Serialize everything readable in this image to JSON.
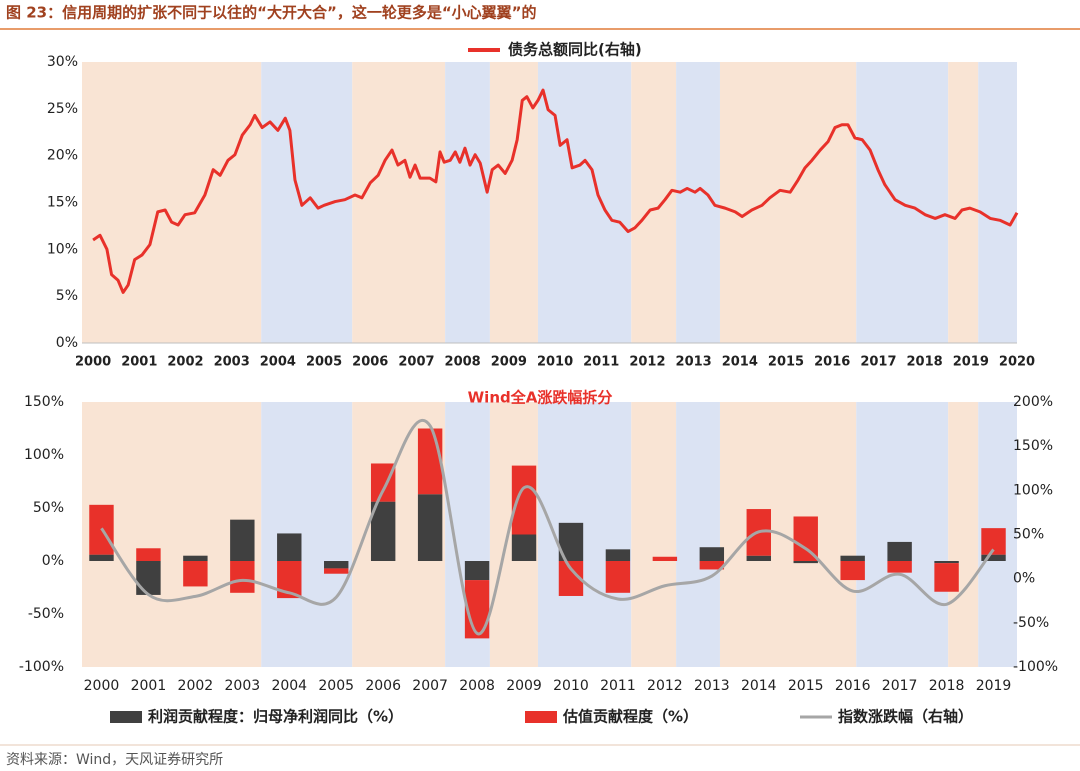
{
  "title": "图 23：信用周期的扩张不同于以往的“大开大合”，这一轮更多是“小心翼翼”的",
  "source": "资料来源：Wind，天风证券研究所",
  "chart_data": [
    {
      "type": "line",
      "legend": "top",
      "xlim": [
        1999.76,
        2020
      ],
      "xticks": [
        2000,
        2001,
        2002,
        2003,
        2004,
        2005,
        2006,
        2007,
        2008,
        2009,
        2010,
        2011,
        2012,
        2013,
        2014,
        2015,
        2016,
        2017,
        2018,
        2019,
        2020
      ],
      "ylim": [
        0,
        30
      ],
      "yticks": [
        {
          "value": 0,
          "label": "0%"
        },
        {
          "value": 5,
          "label": "5%"
        },
        {
          "value": 10,
          "label": "10%"
        },
        {
          "value": 15,
          "label": "15%"
        },
        {
          "value": 20,
          "label": "20%"
        },
        {
          "value": 25,
          "label": "25%"
        },
        {
          "value": 30,
          "label": "30%"
        }
      ],
      "shaded_periods": [
        {
          "from": 1999.76,
          "to": 2003.64,
          "color": "#f9e4d4"
        },
        {
          "from": 2003.64,
          "to": 2005.61,
          "color": "#dbe3f3"
        },
        {
          "from": 2005.61,
          "to": 2007.62,
          "color": "#f9e4d4"
        },
        {
          "from": 2007.62,
          "to": 2008.59,
          "color": "#dbe3f3"
        },
        {
          "from": 2008.59,
          "to": 2009.63,
          "color": "#f9e4d4"
        },
        {
          "from": 2009.63,
          "to": 2011.65,
          "color": "#dbe3f3"
        },
        {
          "from": 2011.65,
          "to": 2012.62,
          "color": "#f9e4d4"
        },
        {
          "from": 2012.62,
          "to": 2013.57,
          "color": "#dbe3f3"
        },
        {
          "from": 2013.57,
          "to": 2016.52,
          "color": "#f9e4d4"
        },
        {
          "from": 2016.52,
          "to": 2018.51,
          "color": "#dbe3f3"
        },
        {
          "from": 2018.51,
          "to": 2019.16,
          "color": "#f9e4d4"
        },
        {
          "from": 2019.16,
          "to": 2020,
          "color": "#dbe3f3"
        }
      ],
      "x": [
        2000,
        2000.15,
        2000.3,
        2000.4,
        2000.54,
        2000.65,
        2000.76,
        2000.9,
        2001.06,
        2001.23,
        2001.4,
        2001.56,
        2001.7,
        2001.84,
        2001.99,
        2002.2,
        2002.42,
        2002.6,
        2002.75,
        2002.92,
        2003.07,
        2003.23,
        2003.4,
        2003.5,
        2003.66,
        2003.83,
        2004,
        2004.16,
        2004.26,
        2004.37,
        2004.52,
        2004.7,
        2004.87,
        2005,
        2005.24,
        2005.45,
        2005.67,
        2005.82,
        2006,
        2006.17,
        2006.32,
        2006.47,
        2006.6,
        2006.75,
        2006.86,
        2006.97,
        2007.08,
        2007.29,
        2007.42,
        2007.51,
        2007.6,
        2007.73,
        2007.84,
        2007.94,
        2008.05,
        2008.16,
        2008.27,
        2008.38,
        2008.53,
        2008.64,
        2008.77,
        2008.92,
        2009.07,
        2009.18,
        2009.29,
        2009.39,
        2009.52,
        2009.63,
        2009.74,
        2009.85,
        2010,
        2010.11,
        2010.26,
        2010.37,
        2010.54,
        2010.65,
        2010.8,
        2010.93,
        2011.08,
        2011.23,
        2011.4,
        2011.58,
        2011.73,
        2011.88,
        2012.06,
        2012.23,
        2012.38,
        2012.53,
        2012.71,
        2012.86,
        2013.03,
        2013.14,
        2013.31,
        2013.46,
        2013.68,
        2013.9,
        2014.05,
        2014.26,
        2014.48,
        2014.65,
        2014.87,
        2015.09,
        2015.26,
        2015.41,
        2015.56,
        2015.74,
        2015.91,
        2016.06,
        2016.21,
        2016.34,
        2016.49,
        2016.65,
        2016.82,
        2016.99,
        2017.14,
        2017.36,
        2017.58,
        2017.79,
        2018.01,
        2018.23,
        2018.44,
        2018.66,
        2018.81,
        2018.98,
        2019.2,
        2019.42,
        2019.63,
        2019.85,
        2020
      ],
      "series": [
        {
          "name": "债务总额同比(右轴)",
          "color": "#e8312a",
          "values": [
            11.0,
            11.5,
            10.0,
            7.3,
            6.7,
            5.4,
            6.2,
            8.9,
            9.4,
            10.5,
            14.0,
            14.2,
            12.9,
            12.6,
            13.7,
            13.9,
            15.8,
            18.5,
            17.9,
            19.5,
            20.1,
            22.2,
            23.3,
            24.3,
            23.0,
            23.6,
            22.7,
            24.0,
            22.7,
            17.4,
            14.7,
            15.5,
            14.4,
            14.7,
            15.1,
            15.3,
            15.8,
            15.5,
            17.1,
            17.9,
            19.5,
            20.6,
            19.0,
            19.5,
            17.7,
            19.0,
            17.6,
            17.6,
            17.2,
            20.4,
            19.3,
            19.5,
            20.4,
            19.3,
            20.8,
            19.0,
            20.1,
            19.2,
            16.1,
            18.5,
            19.0,
            18.1,
            19.5,
            21.7,
            25.9,
            26.3,
            25.1,
            25.9,
            27.0,
            24.9,
            24.3,
            21.1,
            21.7,
            18.7,
            19.0,
            19.5,
            18.5,
            15.8,
            14.2,
            13.1,
            12.9,
            11.9,
            12.3,
            13.1,
            14.2,
            14.4,
            15.3,
            16.3,
            16.1,
            16.5,
            16.1,
            16.5,
            15.8,
            14.7,
            14.4,
            14.0,
            13.5,
            14.2,
            14.7,
            15.5,
            16.3,
            16.1,
            17.4,
            18.7,
            19.5,
            20.6,
            21.5,
            23.0,
            23.3,
            23.3,
            21.9,
            21.7,
            20.6,
            18.5,
            16.9,
            15.3,
            14.7,
            14.4,
            13.7,
            13.3,
            13.7,
            13.3,
            14.2,
            14.4,
            14.0,
            13.3,
            13.1,
            12.6,
            13.9
          ]
        }
      ]
    },
    {
      "type": "bar",
      "title": "Wind全A涨跌幅拆分",
      "stacked": true,
      "legend": "bottom",
      "categories": [
        "2000",
        "2001",
        "2002",
        "2003",
        "2004",
        "2005",
        "2006",
        "2007",
        "2008",
        "2009",
        "2010",
        "2011",
        "2012",
        "2013",
        "2014",
        "2015",
        "2016",
        "2017",
        "2018",
        "2019"
      ],
      "ylim": [
        -100,
        150
      ],
      "yticks": [
        {
          "value": -100,
          "label": "-100%"
        },
        {
          "value": -50,
          "label": "-50%"
        },
        {
          "value": 0,
          "label": "0%"
        },
        {
          "value": 50,
          "label": "50%"
        },
        {
          "value": 100,
          "label": "100%"
        },
        {
          "value": 150,
          "label": "150%"
        }
      ],
      "y2lim": [
        -100,
        200
      ],
      "y2ticks": [
        {
          "value": -100,
          "label": "-100%"
        },
        {
          "value": -50,
          "label": "-50%"
        },
        {
          "value": 0,
          "label": "0%"
        },
        {
          "value": 50,
          "label": "50%"
        },
        {
          "value": 100,
          "label": "100%"
        },
        {
          "value": 150,
          "label": "150%"
        },
        {
          "value": 200,
          "label": "200%"
        }
      ],
      "series": [
        {
          "name": "利润贡献程度：归母净利润同比（%）",
          "color": "#404040",
          "values": [
            6,
            -32,
            5,
            39,
            26,
            -7,
            56,
            63,
            -18,
            25,
            36,
            11,
            0,
            13,
            5,
            -2,
            5,
            18,
            -2,
            6
          ]
        },
        {
          "name": "估值贡献程度（%）",
          "color": "#e8312a",
          "values": [
            47,
            12,
            -24,
            -30,
            -35,
            -5,
            36,
            62,
            -55,
            65,
            -33,
            -30,
            4,
            -8,
            44,
            42,
            -18,
            -11,
            -27,
            25
          ]
        },
        {
          "name": "指数涨跌幅（右轴）",
          "color": "#a6a6a6",
          "type": "line",
          "axis": "y2",
          "values": [
            57,
            -18,
            -20,
            -2,
            -16,
            -21,
            100,
            173,
            -62,
            103,
            11,
            -23,
            -8,
            3,
            53,
            34,
            -14,
            5,
            -29,
            33
          ]
        }
      ]
    }
  ]
}
